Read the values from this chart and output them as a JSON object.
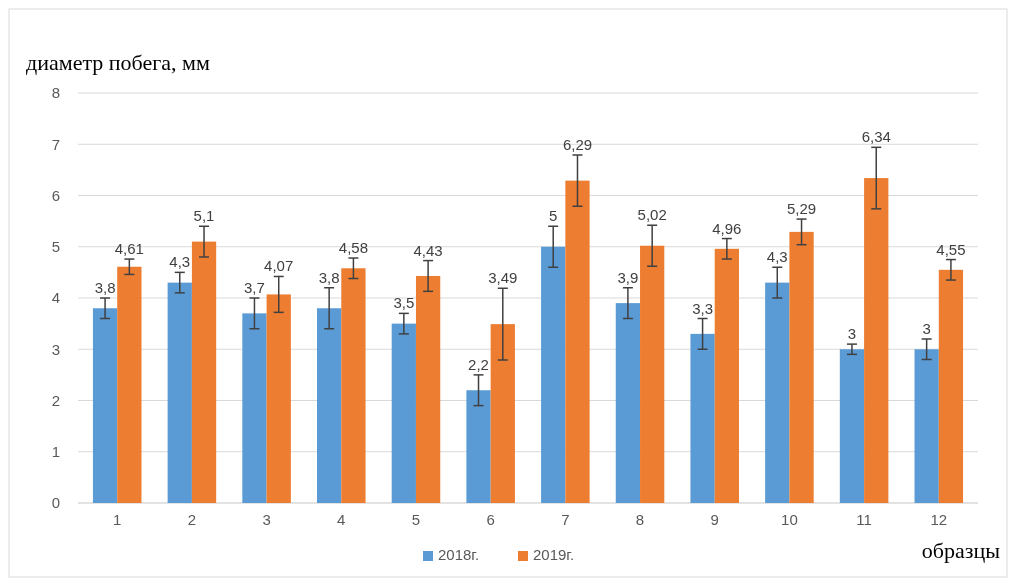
{
  "chart_data": {
    "type": "bar",
    "ylabel": "диаметр побега, мм",
    "xlabel": "образцы",
    "categories": [
      "1",
      "2",
      "3",
      "4",
      "5",
      "6",
      "7",
      "8",
      "9",
      "10",
      "11",
      "12"
    ],
    "series": [
      {
        "name": "2018г.",
        "color": "#5b9bd5",
        "values": [
          3.8,
          4.3,
          3.7,
          3.8,
          3.5,
          2.2,
          5,
          3.9,
          3.3,
          4.3,
          3,
          3
        ],
        "errors": [
          0.2,
          0.2,
          0.3,
          0.4,
          0.2,
          0.3,
          0.4,
          0.3,
          0.3,
          0.3,
          0.1,
          0.2
        ],
        "value_labels": [
          "3,8",
          "4,3",
          "3,7",
          "3,8",
          "3,5",
          "2,2",
          "5",
          "3,9",
          "3,3",
          "4,3",
          "3",
          "3"
        ]
      },
      {
        "name": "2019г.",
        "color": "#ed7d31",
        "values": [
          4.61,
          5.1,
          4.07,
          4.58,
          4.43,
          3.49,
          6.29,
          5.02,
          4.96,
          5.29,
          6.34,
          4.55
        ],
        "errors": [
          0.15,
          0.3,
          0.35,
          0.2,
          0.3,
          0.7,
          0.5,
          0.4,
          0.2,
          0.25,
          0.6,
          0.2
        ],
        "value_labels": [
          "4,61",
          "5,1",
          "4,07",
          "4,58",
          "4,43",
          "3,49",
          "6,29",
          "5,02",
          "4,96",
          "5,29",
          "6,34",
          "4,55"
        ]
      }
    ],
    "ylim": [
      0,
      8
    ],
    "yticks": [
      0,
      1,
      2,
      3,
      4,
      5,
      6,
      7,
      8
    ],
    "grid": "y",
    "legend": "bottom"
  }
}
